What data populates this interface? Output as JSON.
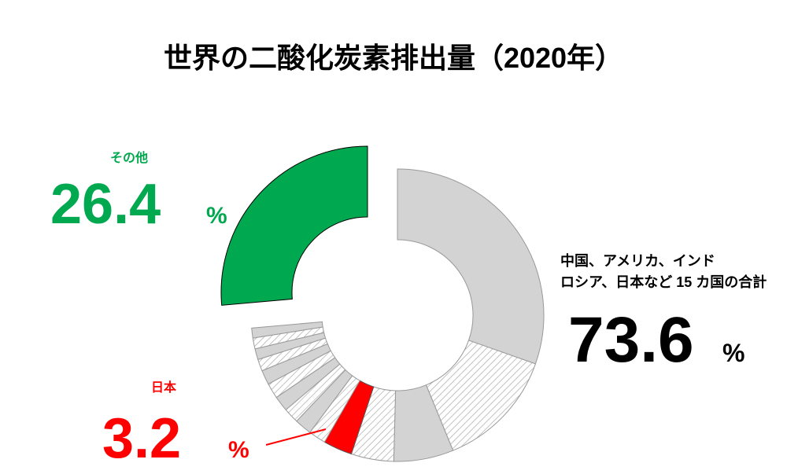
{
  "chart_data": {
    "type": "pie",
    "donut": true,
    "title": "世界の二酸化炭素排出量（2020年）",
    "categories": [
      null,
      null,
      null,
      null,
      "日本",
      null,
      null,
      null,
      null,
      null,
      null,
      null,
      null,
      null,
      null,
      "その他"
    ],
    "values": [
      30.4,
      13.4,
      6.6,
      4.7,
      3.2,
      1.9,
      1.9,
      1.7,
      1.7,
      1.7,
      1.6,
      1.3,
      1.2,
      1.2,
      1.1,
      26.4
    ],
    "colors": [
      "#d3d3d3",
      "#d3d3d3",
      "#d3d3d3",
      "#d3d3d3",
      "#ff0000",
      "#d3d3d3",
      "#d3d3d3",
      "#d3d3d3",
      "#d3d3d3",
      "#d3d3d3",
      "#d3d3d3",
      "#d3d3d3",
      "#d3d3d3",
      "#d3d3d3",
      "#d3d3d3",
      "#00a84f"
    ],
    "unit": "%",
    "annotations": [
      {
        "text": [
          "中国、アメリカ、インド",
          "ロシア、日本など 15 カ国の合計"
        ],
        "value": 73.6
      }
    ]
  }
}
